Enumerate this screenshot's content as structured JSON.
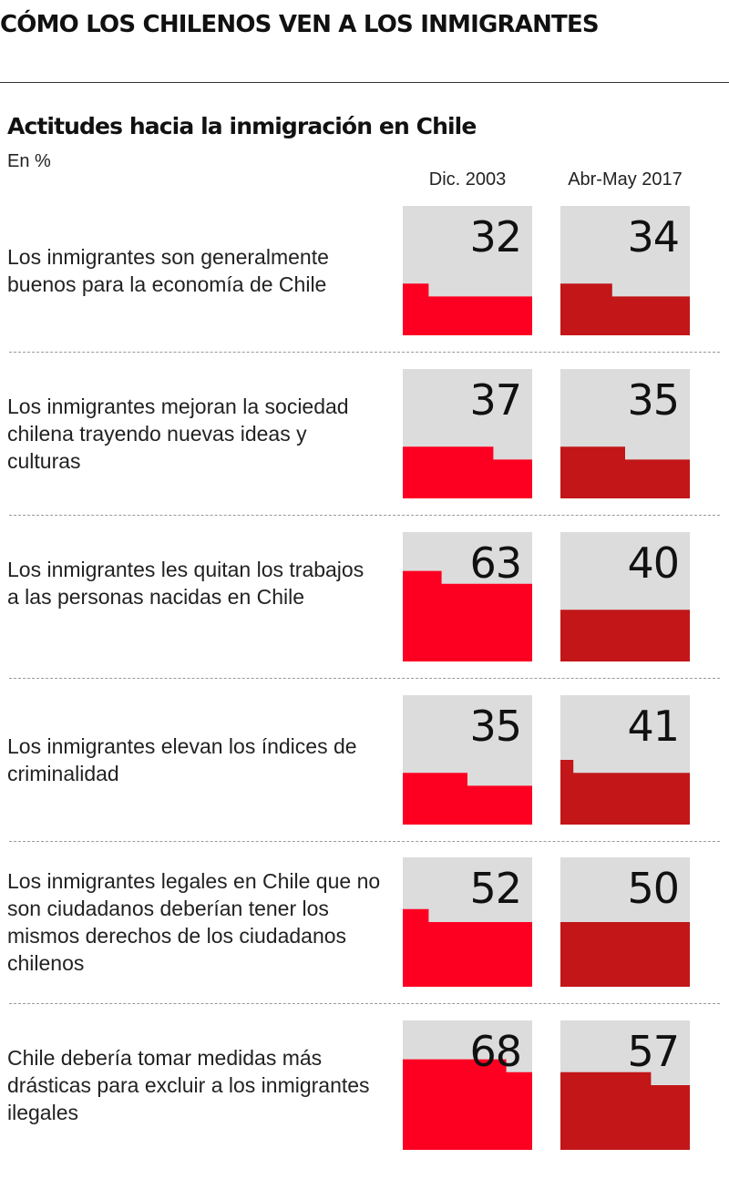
{
  "title": "CÓMO LOS CHILENOS VEN A LOS INMIGRANTES",
  "chart_data": {
    "type": "table",
    "title": "Actitudes hacia la inmigración en Chile",
    "unit": "En %",
    "columns": [
      "Dic. 2003",
      "Abr-May 2017"
    ],
    "series": [
      {
        "name": "Dic. 2003",
        "color": "#fd0021"
      },
      {
        "name": "Abr-May 2017",
        "color": "#c21618"
      }
    ],
    "rows": [
      {
        "label": "Los inmigrantes son generalmente buenos para la economía de Chile",
        "values": [
          32,
          34
        ]
      },
      {
        "label": "Los inmigrantes mejoran la sociedad chilena trayendo nuevas ideas y culturas",
        "values": [
          37,
          35
        ]
      },
      {
        "label": "Los inmigrantes les quitan los trabajos a las personas nacidas en Chile",
        "values": [
          63,
          40
        ]
      },
      {
        "label": "Los inmigrantes elevan los índices de criminalidad",
        "values": [
          35,
          41
        ]
      },
      {
        "label": "Los inmigrantes legales en Chile que no son ciudadanos deberían tener los mismos derechos de los ciudadanos chilenos",
        "values": [
          52,
          50
        ]
      },
      {
        "label": "Chile debería tomar medidas más drásticas para excluir a los inmigrantes ilegales",
        "values": [
          68,
          57
        ]
      }
    ],
    "ylim": [
      0,
      100
    ]
  }
}
